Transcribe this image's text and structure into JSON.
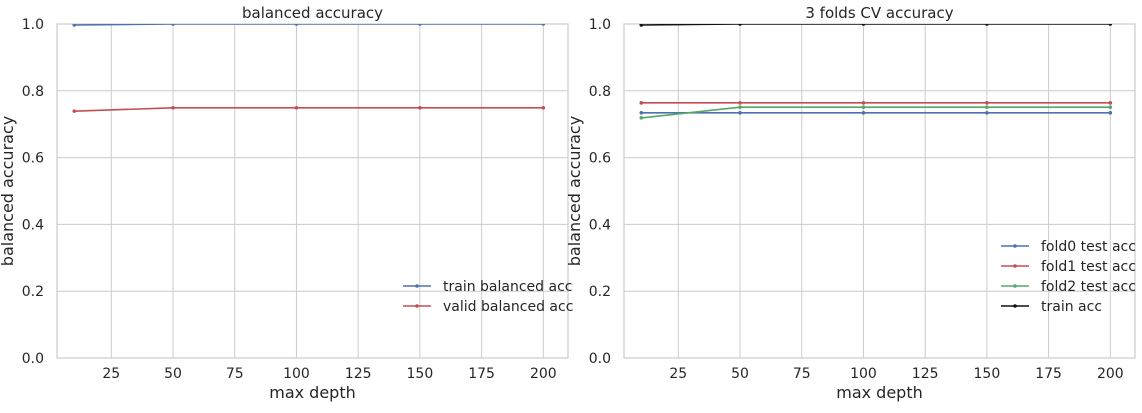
{
  "chart_data": [
    {
      "type": "line",
      "title": "balanced accuracy",
      "xlabel": "max depth",
      "ylabel": "balanced accuracy",
      "xlim": [
        3,
        210
      ],
      "ylim": [
        0.0,
        1.0
      ],
      "xticks": [
        25,
        50,
        75,
        100,
        125,
        150,
        175,
        200
      ],
      "yticks": [
        0.0,
        0.2,
        0.4,
        0.6,
        0.8,
        1.0
      ],
      "grid": true,
      "legend_position": "lower-right",
      "x": [
        10,
        50,
        100,
        150,
        200
      ],
      "series": [
        {
          "name": "train balanced acc",
          "color": "#4c72b0",
          "values": [
            0.997,
            1.0,
            1.0,
            1.0,
            1.0
          ]
        },
        {
          "name": "valid balanced acc",
          "color": "#c44e52",
          "values": [
            0.739,
            0.749,
            0.749,
            0.749,
            0.749
          ]
        }
      ]
    },
    {
      "type": "line",
      "title": "3 folds CV accuracy",
      "xlabel": "max depth",
      "ylabel": "balanced accuracy",
      "xlim": [
        3,
        210
      ],
      "ylim": [
        0.0,
        1.0
      ],
      "xticks": [
        25,
        50,
        75,
        100,
        125,
        150,
        175,
        200
      ],
      "yticks": [
        0.0,
        0.2,
        0.4,
        0.6,
        0.8,
        1.0
      ],
      "grid": true,
      "legend_position": "lower-right",
      "x": [
        10,
        50,
        100,
        150,
        200
      ],
      "series": [
        {
          "name": "fold0 test acc",
          "color": "#4c72b0",
          "values": [
            0.734,
            0.734,
            0.734,
            0.734,
            0.734
          ]
        },
        {
          "name": "fold1 test acc",
          "color": "#c44e52",
          "values": [
            0.764,
            0.764,
            0.764,
            0.764,
            0.764
          ]
        },
        {
          "name": "fold2 test acc",
          "color": "#55a868",
          "values": [
            0.719,
            0.751,
            0.751,
            0.751,
            0.751
          ]
        },
        {
          "name": "train acc",
          "color": "#111111",
          "values": [
            0.997,
            1.0,
            1.0,
            1.0,
            1.0
          ]
        }
      ]
    }
  ]
}
